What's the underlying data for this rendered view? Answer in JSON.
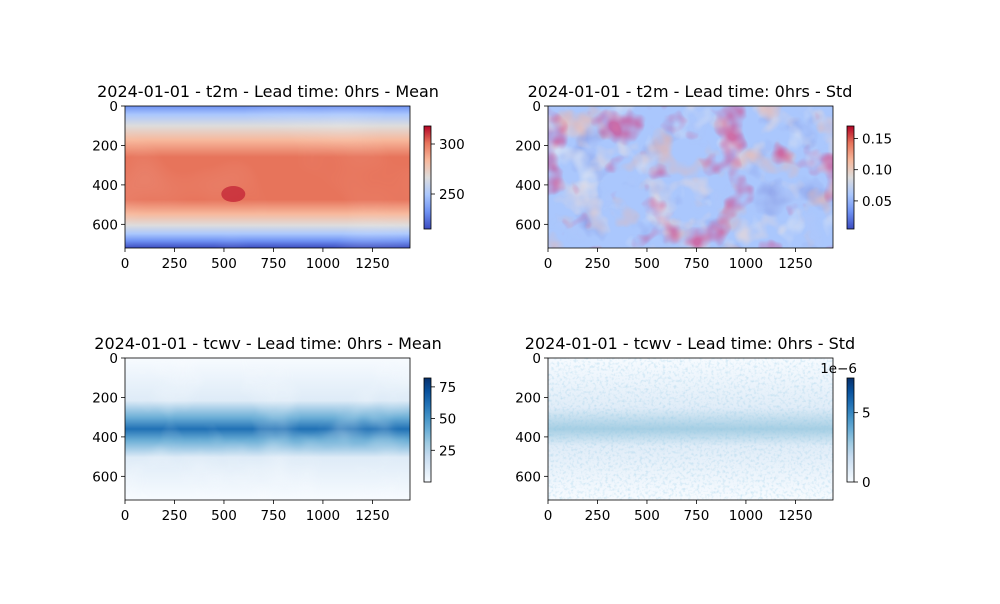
{
  "figure": {
    "background": "#ffffff"
  },
  "chart_data": [
    {
      "type": "heatmap",
      "title": "2024-01-01 - t2m - Lead time: 0hrs - Mean",
      "variable": "t2m",
      "statistic": "Mean",
      "x_ticks": [
        "0",
        "250",
        "500",
        "750",
        "1000",
        "1250"
      ],
      "y_ticks": [
        "0",
        "200",
        "400",
        "600"
      ],
      "xlim": [
        0,
        1440
      ],
      "ylim": [
        720,
        0
      ],
      "colormap": "coolwarm",
      "colorbar": {
        "range": [
          215,
          318
        ],
        "ticks": [
          250,
          300
        ],
        "tick_labels": [
          "250",
          "300"
        ],
        "offset_text": ""
      },
      "colors": [
        "#3b4cc0",
        "#6f92f3",
        "#aac7fd",
        "#dddcdc",
        "#f7b89c",
        "#e7745b",
        "#b40426"
      ]
    },
    {
      "type": "heatmap",
      "title": "2024-01-01 - t2m - Lead time: 0hrs - Std",
      "variable": "t2m",
      "statistic": "Std",
      "x_ticks": [
        "0",
        "250",
        "500",
        "750",
        "1000",
        "1250"
      ],
      "y_ticks": [
        "0",
        "200",
        "400",
        "600"
      ],
      "xlim": [
        0,
        1440
      ],
      "ylim": [
        720,
        0
      ],
      "colormap": "coolwarm",
      "colorbar": {
        "range": [
          0.005,
          0.17
        ],
        "ticks": [
          0.05,
          0.1,
          0.15
        ],
        "tick_labels": [
          "0.05",
          "0.10",
          "0.15"
        ],
        "offset_text": ""
      },
      "colors": [
        "#3b4cc0",
        "#6f92f3",
        "#aac7fd",
        "#dddcdc",
        "#f7b89c",
        "#e7745b",
        "#b40426"
      ]
    },
    {
      "type": "heatmap",
      "title": "2024-01-01 - tcwv - Lead time: 0hrs - Mean",
      "variable": "tcwv",
      "statistic": "Mean",
      "x_ticks": [
        "0",
        "250",
        "500",
        "750",
        "1000",
        "1250"
      ],
      "y_ticks": [
        "0",
        "200",
        "400",
        "600"
      ],
      "xlim": [
        0,
        1440
      ],
      "ylim": [
        720,
        0
      ],
      "colormap": "Blues",
      "colorbar": {
        "range": [
          0,
          82
        ],
        "ticks": [
          25,
          50,
          75
        ],
        "tick_labels": [
          "25",
          "50",
          "75"
        ],
        "offset_text": ""
      },
      "colors": [
        "#f7fbff",
        "#deebf7",
        "#c6dbef",
        "#9ecae1",
        "#6baed6",
        "#4292c6",
        "#2171b5",
        "#08519c",
        "#08306b"
      ]
    },
    {
      "type": "heatmap",
      "title": "2024-01-01 - tcwv - Lead time: 0hrs - Std",
      "variable": "tcwv",
      "statistic": "Std",
      "x_ticks": [
        "0",
        "250",
        "500",
        "750",
        "1000",
        "1250"
      ],
      "y_ticks": [
        "0",
        "200",
        "400",
        "600"
      ],
      "xlim": [
        0,
        1440
      ],
      "ylim": [
        720,
        0
      ],
      "colormap": "Blues",
      "colorbar": {
        "range": [
          0,
          7.5
        ],
        "ticks": [
          0,
          5
        ],
        "tick_labels": [
          "0",
          "5"
        ],
        "offset_text": "1e−6"
      },
      "colors": [
        "#f7fbff",
        "#deebf7",
        "#c6dbef",
        "#9ecae1",
        "#6baed6",
        "#4292c6",
        "#2171b5",
        "#08519c",
        "#08306b"
      ]
    }
  ]
}
